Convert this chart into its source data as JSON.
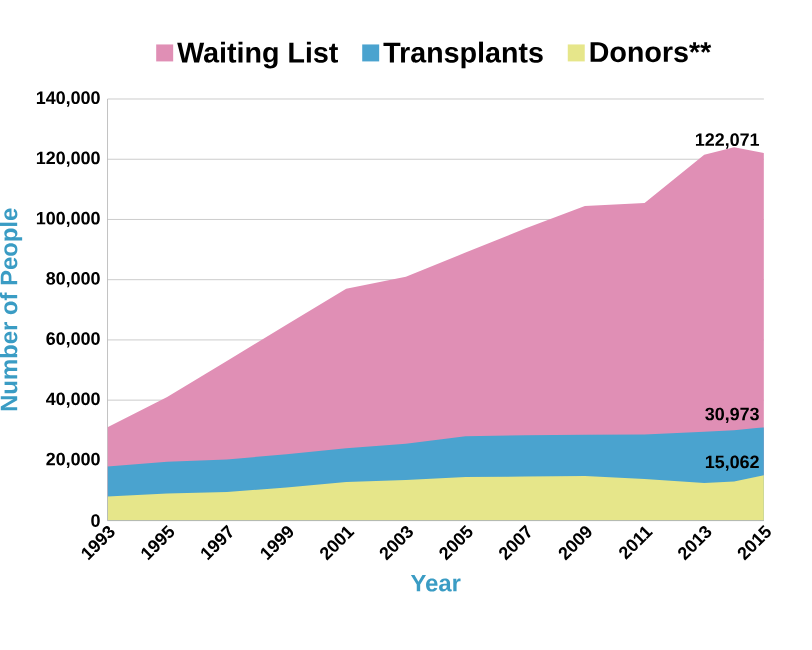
{
  "chart_data": {
    "type": "area",
    "xlabel": "Year",
    "ylabel": "Number of People",
    "x": [
      1993,
      1995,
      1997,
      1999,
      2001,
      2003,
      2005,
      2007,
      2009,
      2011,
      2013,
      2014,
      2015
    ],
    "series": [
      {
        "name": "Waiting List",
        "color": "#e08fb5",
        "values": [
          31000,
          41000,
          53000,
          65000,
          77000,
          81000,
          89000,
          97000,
          104500,
          105500,
          121500,
          124000,
          122071
        ],
        "value_labels": [
          null,
          null,
          null,
          null,
          null,
          null,
          null,
          null,
          null,
          null,
          null,
          null,
          "122,071"
        ]
      },
      {
        "name": "Transplants",
        "color": "#4aa3cf",
        "values": [
          18000,
          19500,
          20300,
          22000,
          24000,
          25500,
          28000,
          28300,
          28500,
          28600,
          29500,
          30000,
          30973
        ],
        "value_labels": [
          null,
          null,
          null,
          null,
          null,
          null,
          null,
          null,
          null,
          null,
          null,
          null,
          "30,973"
        ]
      },
      {
        "name": "Donors**",
        "color": "#e6e68a",
        "values": [
          8000,
          9000,
          9500,
          11000,
          12800,
          13500,
          14500,
          14600,
          14800,
          13800,
          12500,
          13000,
          15062
        ],
        "value_labels": [
          null,
          null,
          null,
          null,
          null,
          null,
          null,
          null,
          null,
          null,
          null,
          null,
          "15,062"
        ]
      }
    ],
    "xlim": [
      1993,
      2015
    ],
    "xticks": [
      1993,
      1995,
      1997,
      1999,
      2001,
      2003,
      2005,
      2007,
      2009,
      2011,
      2013,
      2015
    ],
    "ylim": [
      0,
      140000
    ],
    "yticks": [
      {
        "value": 0,
        "label": "0"
      },
      {
        "value": 20000,
        "label": "20,000"
      },
      {
        "value": 40000,
        "label": "40,000"
      },
      {
        "value": 60000,
        "label": "60,000"
      },
      {
        "value": 80000,
        "label": "80,000"
      },
      {
        "value": 100000,
        "label": "100,000"
      },
      {
        "value": 120000,
        "label": "120,000"
      },
      {
        "value": 140000,
        "label": "140,000"
      }
    ],
    "grid": "y",
    "legend": "top"
  }
}
